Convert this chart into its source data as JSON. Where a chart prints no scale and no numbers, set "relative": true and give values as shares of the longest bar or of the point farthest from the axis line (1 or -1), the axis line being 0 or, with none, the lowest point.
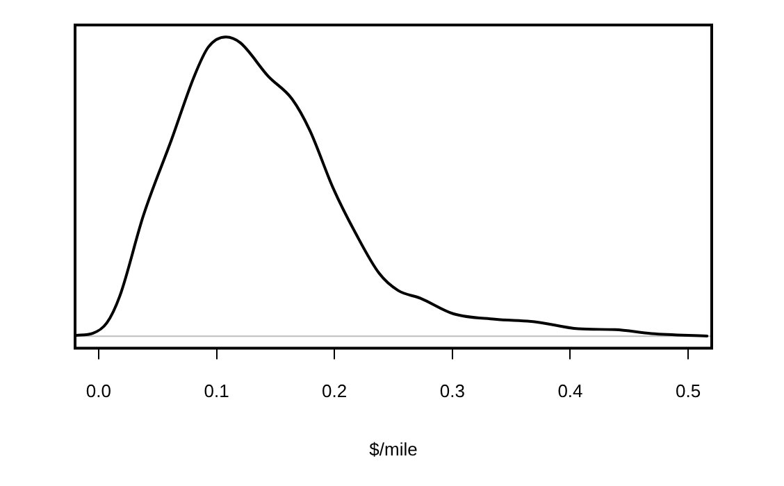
{
  "chart_data": {
    "type": "line",
    "xlabel": "$/mile",
    "relative": true,
    "marker": "none",
    "line_style": "solid",
    "grid": false,
    "legend": false,
    "xlim": [
      -0.02,
      0.52
    ],
    "xticks": [
      {
        "value": 0,
        "label": "0.0"
      },
      0.1,
      0.2,
      0.3,
      0.4,
      0.5
    ],
    "ref_lines": [
      {
        "axis": "y",
        "value": 0,
        "color": "#bebebe"
      }
    ],
    "series": [
      {
        "color": "#000000",
        "x": [
          -0.019,
          -0.005,
          0.007,
          0.018,
          0.038,
          0.062,
          0.081,
          0.093,
          0.108,
          0.12,
          0.144,
          0.164,
          0.179,
          0.199,
          0.218,
          0.238,
          0.254,
          0.273,
          0.301,
          0.336,
          0.371,
          0.407,
          0.438,
          0.469,
          0.516
        ],
        "values": [
          0.003,
          0.01,
          0.045,
          0.135,
          0.404,
          0.659,
          0.868,
          0.966,
          1,
          0.981,
          0.868,
          0.793,
          0.689,
          0.494,
          0.344,
          0.21,
          0.153,
          0.127,
          0.075,
          0.057,
          0.048,
          0.025,
          0.022,
          0.009,
          0.001
        ]
      }
    ]
  }
}
